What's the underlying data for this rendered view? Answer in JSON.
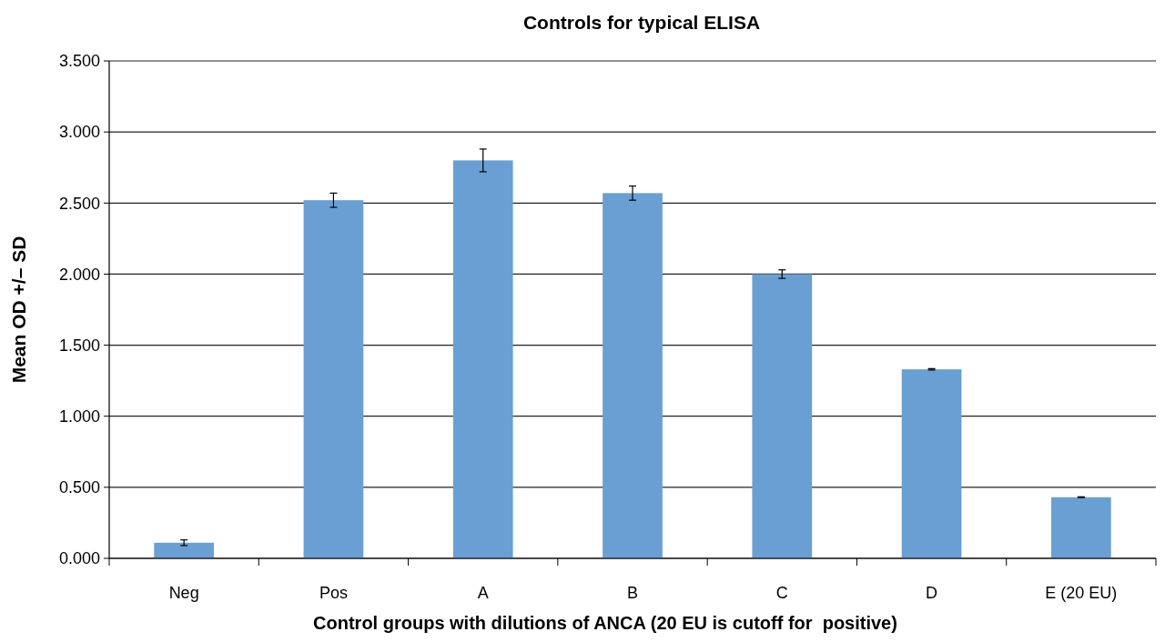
{
  "chart_data": {
    "type": "bar",
    "title": "Controls for typical ELISA",
    "xlabel": "Control groups with dilutions of ANCA (20 EU is cutoff for  positive)",
    "ylabel": "Mean OD +/– SD",
    "categories": [
      "Neg",
      "Pos",
      "A",
      "B",
      "C",
      "D",
      "E (20 EU)"
    ],
    "values": [
      0.11,
      2.52,
      2.8,
      2.57,
      2.0,
      1.33,
      0.43
    ],
    "errors": [
      0.02,
      0.05,
      0.08,
      0.05,
      0.03,
      0.005,
      0.003
    ],
    "color": "#6a9fd4",
    "ylim": [
      0,
      3.5
    ],
    "yticks": [
      {
        "value": 0,
        "label": "0.000"
      },
      {
        "value": 0.5,
        "label": "0.500"
      },
      {
        "value": 1,
        "label": "1.000"
      },
      {
        "value": 1.5,
        "label": "1.500"
      },
      {
        "value": 2,
        "label": "2.000"
      },
      {
        "value": 2.5,
        "label": "2.500"
      },
      {
        "value": 3,
        "label": "3.000"
      },
      {
        "value": 3.5,
        "label": "3.500"
      }
    ],
    "grid": "y"
  }
}
